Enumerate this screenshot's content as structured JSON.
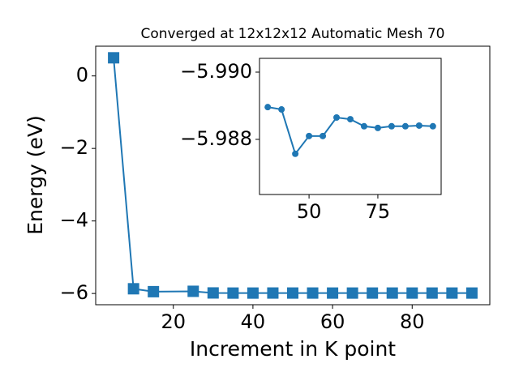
{
  "chart_data": [
    {
      "type": "line",
      "title": "Converged at 12x12x12 Automatic Mesh 70",
      "x_label": "Increment in K point",
      "y_label": "Energy (eV)",
      "x": [
        5,
        10,
        15,
        25,
        30,
        35,
        40,
        45,
        50,
        55,
        60,
        65,
        70,
        75,
        80,
        85,
        90,
        95
      ],
      "series": [
        {
          "color": "#1f77b4",
          "marker": "square",
          "values": [
            0.5,
            -5.87,
            -5.95,
            -5.94,
            -5.985,
            -5.98896,
            -5.98889,
            -5.98757,
            -5.9881,
            -5.9881,
            -5.98865,
            -5.9886,
            -5.98839,
            -5.98834,
            -5.98839,
            -5.98839,
            -5.98841,
            -5.98839
          ]
        }
      ],
      "xlim": [
        0.5,
        99.5
      ],
      "ylim": [
        -6.31,
        0.82
      ],
      "xticks": [
        20,
        40,
        60,
        80
      ],
      "yticks": [
        {
          "value": 0,
          "label": "0"
        },
        {
          "value": -2,
          "label": "−2"
        },
        {
          "value": -4,
          "label": "−4"
        },
        {
          "value": -6,
          "label": "−6"
        }
      ]
    },
    {
      "type": "line",
      "x": [
        35,
        40,
        45,
        50,
        55,
        60,
        65,
        70,
        75,
        80,
        85,
        90,
        95
      ],
      "series": [
        {
          "color": "#1f77b4",
          "marker": "circle",
          "values": [
            -5.98896,
            -5.98889,
            -5.98757,
            -5.9881,
            -5.9881,
            -5.98865,
            -5.9886,
            -5.98839,
            -5.98834,
            -5.98839,
            -5.98839,
            -5.98841,
            -5.98839
          ]
        }
      ],
      "xlim": [
        32,
        98
      ],
      "ylim": [
        -5.98636,
        -5.99041
      ],
      "xticks": [
        50,
        75
      ],
      "yticks": [
        {
          "value": -5.99,
          "label": "−5.990"
        },
        {
          "value": -5.988,
          "label": "−5.988"
        }
      ]
    }
  ]
}
